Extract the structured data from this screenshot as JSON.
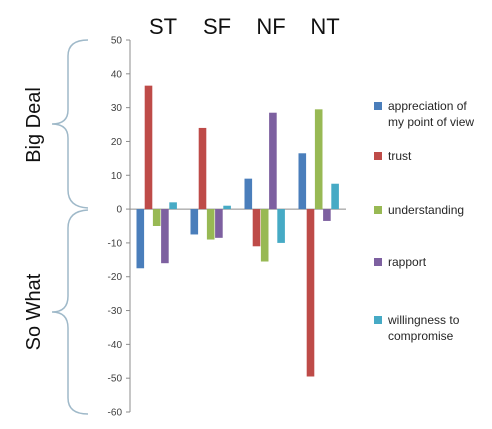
{
  "chart_data": {
    "type": "bar",
    "categories": [
      "ST",
      "SF",
      "NF",
      "NT"
    ],
    "series": [
      {
        "name": "appreciation of my point of view",
        "color": "#4a7ebb",
        "values": [
          -17.5,
          -7.5,
          9,
          16.5
        ]
      },
      {
        "name": "trust",
        "color": "#be4b48",
        "values": [
          36.5,
          24,
          -11,
          -49.5
        ]
      },
      {
        "name": "understanding",
        "color": "#98b954",
        "values": [
          -5,
          -9,
          -15.5,
          29.5
        ]
      },
      {
        "name": "rapport",
        "color": "#7d60a0",
        "values": [
          -16,
          -8.5,
          28.5,
          -3.5
        ]
      },
      {
        "name": "willingness to compromise",
        "color": "#46aac5",
        "values": [
          2,
          1,
          -10,
          7.5
        ]
      }
    ],
    "ylim": [
      -60,
      50
    ],
    "yticks": [
      50,
      40,
      30,
      20,
      10,
      0,
      -10,
      -20,
      -30,
      -40,
      -50,
      -60
    ],
    "legend_position": "right",
    "grid": false
  },
  "side_labels": {
    "upper": "Big Deal",
    "lower": "So What"
  },
  "legend_labels": [
    [
      "appreciation of",
      "my point of view"
    ],
    [
      "trust"
    ],
    [
      "understanding"
    ],
    [
      "rapport"
    ],
    [
      "willingness to",
      "compromise"
    ]
  ]
}
